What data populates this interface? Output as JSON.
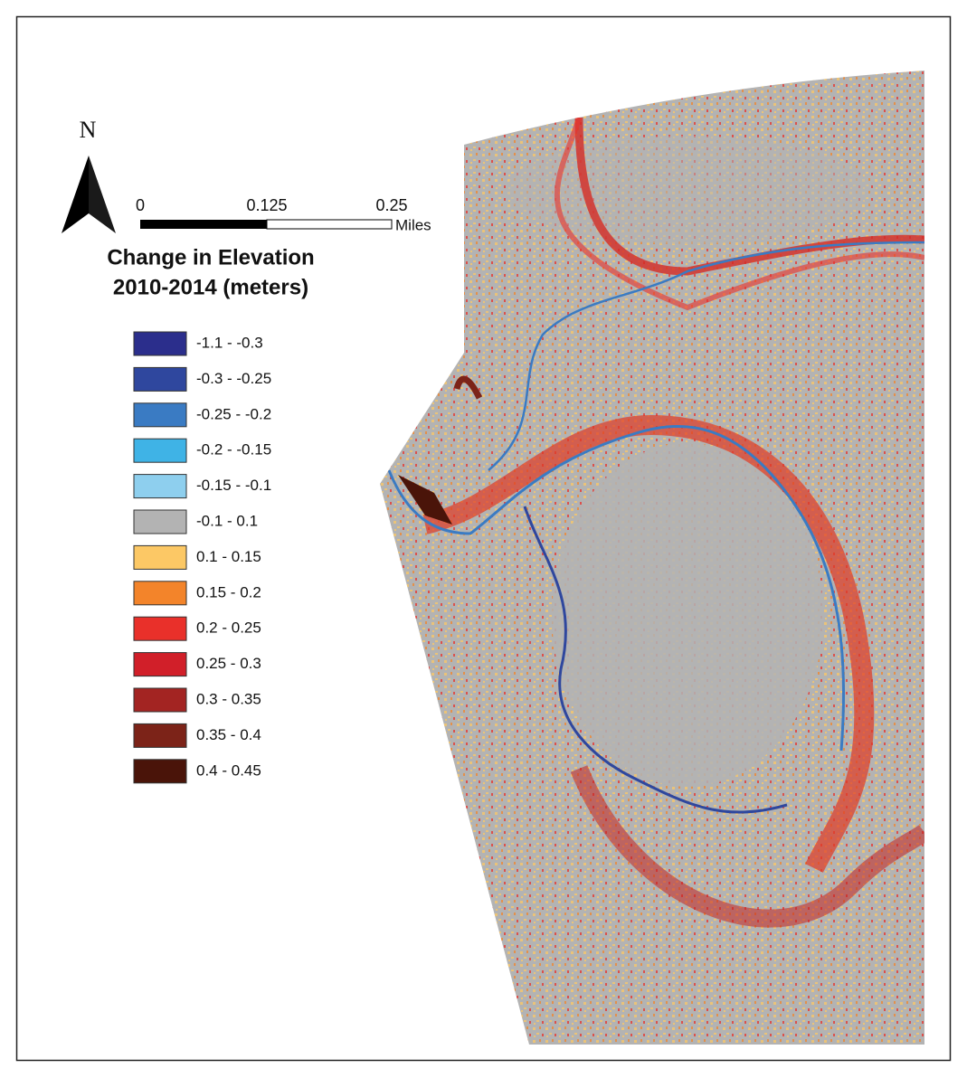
{
  "north_arrow": {
    "label": "N"
  },
  "scale_bar": {
    "labels": [
      "0",
      "0.125",
      "0.25"
    ],
    "unit": "Miles"
  },
  "legend": {
    "title_lines": [
      "Change in Elevation",
      "2010-2014 (meters)"
    ],
    "items": [
      {
        "label": "-1.1 - -0.3",
        "color": "#2b2e8c"
      },
      {
        "label": "-0.3 - -0.25",
        "color": "#2f479e"
      },
      {
        "label": "-0.25 - -0.2",
        "color": "#3a7bc3"
      },
      {
        "label": "-0.2 - -0.15",
        "color": "#3fb3e6"
      },
      {
        "label": "-0.15 - -0.1",
        "color": "#8ecfee"
      },
      {
        "label": "-0.1 - 0.1",
        "color": "#b3b3b3"
      },
      {
        "label": "0.1 - 0.15",
        "color": "#fcc865"
      },
      {
        "label": "0.15 - 0.2",
        "color": "#f3842a"
      },
      {
        "label": "0.2 - 0.25",
        "color": "#e9302a"
      },
      {
        "label": "0.25 - 0.3",
        "color": "#d11f29"
      },
      {
        "label": "0.3 - 0.35",
        "color": "#a32422"
      },
      {
        "label": "0.35 - 0.4",
        "color": "#7c2318"
      },
      {
        "label": "0.4 - 0.45",
        "color": "#4a1409"
      }
    ]
  }
}
